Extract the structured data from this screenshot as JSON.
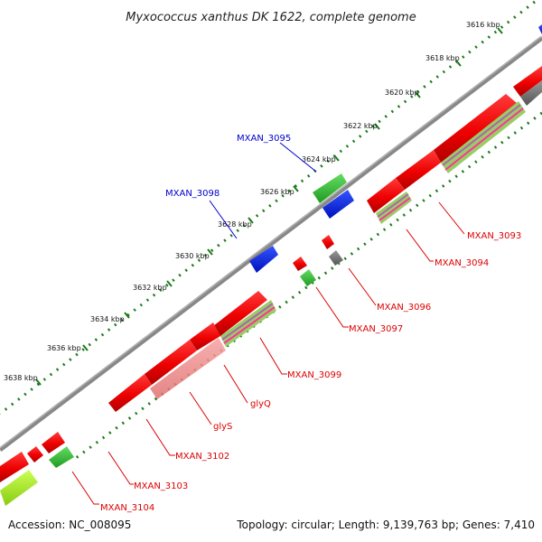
{
  "title": "Myxococcus xanthus DK 1622, complete genome",
  "footer": {
    "accession": "Accession: NC_008095",
    "stats": "Topology: circular; Length: 9,139,763 bp; Genes: 7,410"
  },
  "ticks": [
    {
      "label": "3616 kbp"
    },
    {
      "label": "3618 kbp"
    },
    {
      "label": "3620 kbp"
    },
    {
      "label": "3622 kbp"
    },
    {
      "label": "3624 kbp"
    },
    {
      "label": "3626 kbp"
    },
    {
      "label": "3628 kbp"
    },
    {
      "label": "3630 kbp"
    },
    {
      "label": "3632 kbp"
    },
    {
      "label": "3634 kbp"
    },
    {
      "label": "3636 kbp"
    },
    {
      "label": "3638 kbp"
    }
  ],
  "gene_labels_forward": [
    {
      "label": "MXAN_3095"
    },
    {
      "label": "MXAN_3098"
    }
  ],
  "gene_labels_reverse": [
    {
      "label": "MXAN_3093"
    },
    {
      "label": "MXAN_3094"
    },
    {
      "label": "MXAN_3096"
    },
    {
      "label": "MXAN_3097"
    },
    {
      "label": "MXAN_3099"
    },
    {
      "label": "glyQ"
    },
    {
      "label": "glyS"
    },
    {
      "label": "MXAN_3102"
    },
    {
      "label": "MXAN_3103"
    },
    {
      "label": "MXAN_3104"
    }
  ],
  "colors": {
    "forward_label": "#0000cc",
    "reverse_label": "#dd0000",
    "red_gene": "#ee0000",
    "green_gene": "#33bb33",
    "blue_gene": "#0022ee",
    "gray_gene": "#777777",
    "pink_gene": "#f08080",
    "lime_gene": "#aaee22",
    "backbone": "#888888",
    "dots": "#1a7a1a"
  }
}
